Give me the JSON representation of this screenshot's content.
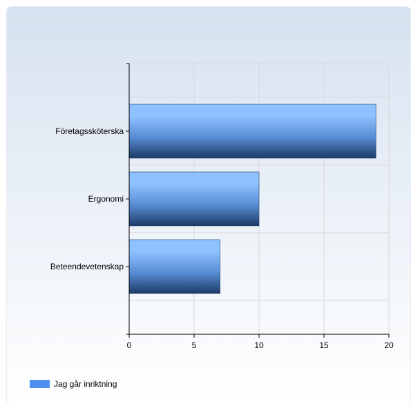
{
  "chart_data": {
    "type": "bar",
    "orientation": "horizontal",
    "categories": [
      "Företagssköterska",
      "Ergonomi",
      "Beteendevetenskap"
    ],
    "series": [
      {
        "name": "Jag går inriktning",
        "values": [
          19,
          10,
          7
        ]
      }
    ],
    "xlim": [
      0,
      20
    ],
    "xticks": [
      0,
      5,
      10,
      15,
      20
    ],
    "grid": true,
    "legend_position": "bottom-left",
    "colors": {
      "bar_top": "#8fc0ff",
      "bar_mid": "#5a8fd6",
      "bar_bottom": "#1c3a68",
      "legend_swatch": "#4f8ff0",
      "grid": "#d8d8d8",
      "axis": "#000000"
    }
  }
}
